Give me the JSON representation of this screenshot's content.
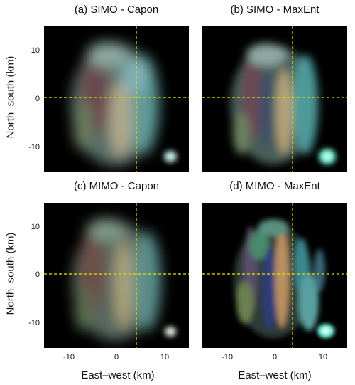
{
  "figure": {
    "panels": [
      {
        "id": "a",
        "title": "(a) SIMO - Capon"
      },
      {
        "id": "b",
        "title": "(b) SIMO - MaxEnt"
      },
      {
        "id": "c",
        "title": "(c) MIMO - Capon"
      },
      {
        "id": "d",
        "title": "(d) MIMO - MaxEnt"
      }
    ],
    "ylabel": "North–south (km)",
    "xlabel": "East–west (km)",
    "xticks": [
      "-10",
      "0",
      "10"
    ],
    "yticks": [
      "10",
      "0",
      "-10"
    ],
    "crosshair_color": "#e8e000"
  }
}
